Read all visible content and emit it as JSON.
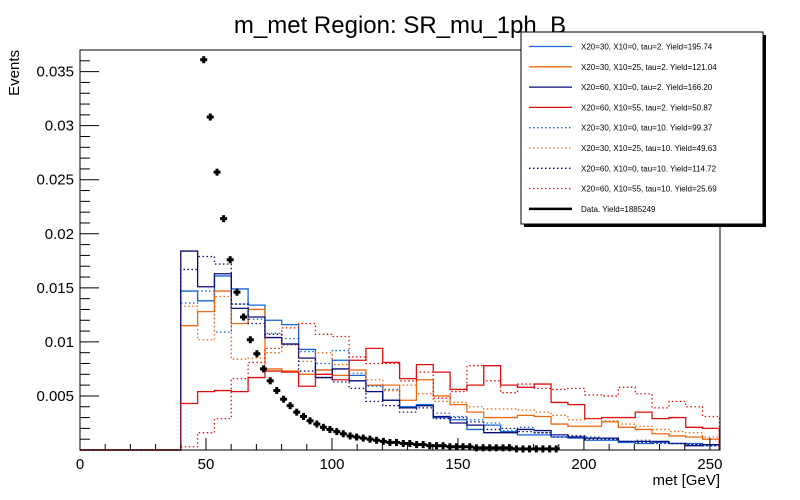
{
  "chart_data": {
    "type": "line",
    "subtype": "step-histogram-with-data-points",
    "title": "m_met Region: SR_mu_1ph_B",
    "xlabel": "met [GeV]",
    "ylabel": "Events",
    "xlim": [
      0,
      254
    ],
    "ylim": [
      0,
      0.037
    ],
    "grid": false,
    "legend_position": "top-right",
    "x_ticks": [
      0,
      50,
      100,
      150,
      200,
      250
    ],
    "x_tick_labels": [
      "0",
      "50",
      "100",
      "150",
      "200",
      "250"
    ],
    "y_ticks": [
      0.005,
      0.01,
      0.015,
      0.02,
      0.025,
      0.03,
      0.035
    ],
    "y_tick_labels": [
      "0.005",
      "0.01",
      "0.015",
      "0.02",
      "0.025",
      "0.03",
      "0.035"
    ],
    "bins": {
      "start": 40,
      "width": 6.68,
      "count": 32
    },
    "series": [
      {
        "name": "X20=30, X10=0, tau=2. Yield=195.74",
        "color": "#1565d8",
        "style": "solid",
        "values": [
          0.0147,
          0.0138,
          0.0161,
          0.0149,
          0.0134,
          0.012,
          0.0116,
          0.0093,
          0.0074,
          0.0083,
          0.0069,
          0.006,
          0.0046,
          0.004,
          0.0042,
          0.003,
          0.0028,
          0.0019,
          0.0023,
          0.0017,
          0.0014,
          0.0014,
          0.0012,
          0.0011,
          0.0009,
          0.0009,
          0.0007,
          0.0006,
          0.0007,
          0.0006,
          0.0006,
          0.0005
        ]
      },
      {
        "name": "X20=30, X10=25, tau=2. Yield=121.04",
        "color": "#ee6a10",
        "style": "solid",
        "values": [
          0.0115,
          0.0128,
          0.0147,
          0.0117,
          0.013,
          0.0075,
          0.0073,
          0.007,
          0.0074,
          0.0069,
          0.0074,
          0.006,
          0.006,
          0.0046,
          0.0065,
          0.005,
          0.0042,
          0.0035,
          0.003,
          0.003,
          0.0032,
          0.0031,
          0.0024,
          0.0022,
          0.0022,
          0.0026,
          0.0021,
          0.0019,
          0.0015,
          0.0013,
          0.0012,
          0.001
        ]
      },
      {
        "name": "X20=60, X10=0, tau=2. Yield=166.20",
        "color": "#0a0a78",
        "style": "solid",
        "values": [
          0.0184,
          0.0151,
          0.0163,
          0.0131,
          0.0123,
          0.0104,
          0.0098,
          0.0085,
          0.0067,
          0.0075,
          0.0064,
          0.0054,
          0.0046,
          0.0039,
          0.0041,
          0.0031,
          0.0025,
          0.0023,
          0.0016,
          0.0016,
          0.0019,
          0.0018,
          0.0014,
          0.0012,
          0.0011,
          0.0011,
          0.0008,
          0.0008,
          0.0008,
          0.0006,
          0.0004,
          0.0005
        ]
      },
      {
        "name": "X20=60, X10=55, tau=2. Yield=50.87",
        "color": "#dd1010",
        "style": "solid",
        "values": [
          0.0043,
          0.0054,
          0.0055,
          0.0054,
          0.0067,
          0.0073,
          0.0072,
          0.0059,
          0.007,
          0.0065,
          0.0083,
          0.0094,
          0.0081,
          0.0066,
          0.0079,
          0.0072,
          0.0056,
          0.006,
          0.0078,
          0.006,
          0.0058,
          0.0061,
          0.0044,
          0.0042,
          0.0029,
          0.003,
          0.003,
          0.0035,
          0.0029,
          0.003,
          0.0021,
          0.002
        ]
      },
      {
        "name": "X20=30, X10=0, tau=10. Yield=99.37",
        "color": "#1565d8",
        "style": "dotted",
        "values": [
          0.0136,
          0.0147,
          0.0109,
          0.0135,
          0.0121,
          0.0108,
          0.0103,
          0.0091,
          0.008,
          0.0092,
          0.0071,
          0.0059,
          0.0056,
          0.004,
          0.0042,
          0.0034,
          0.0031,
          0.0028,
          0.0025,
          0.0018,
          0.0021,
          0.0016,
          0.0014,
          0.0013,
          0.0012,
          0.001,
          0.0008,
          0.0009,
          0.0007,
          0.0006,
          0.0005,
          0.0004
        ]
      },
      {
        "name": "X20=30, X10=25, tau=10. Yield=49.63",
        "color": "#ee6a10",
        "style": "dotted",
        "values": [
          0.0133,
          0.0102,
          0.0142,
          0.0084,
          0.0085,
          0.009,
          0.0097,
          0.0082,
          0.009,
          0.0079,
          0.0074,
          0.0065,
          0.0055,
          0.006,
          0.0052,
          0.0045,
          0.0044,
          0.004,
          0.0038,
          0.0038,
          0.0037,
          0.0035,
          0.0032,
          0.0028,
          0.0029,
          0.0027,
          0.0024,
          0.0022,
          0.0019,
          0.0017,
          0.0016,
          0.0012
        ]
      },
      {
        "name": "X20=60, X10=0, tau=10. Yield=114.72",
        "color": "#0a0a78",
        "style": "dotted",
        "values": [
          0.0167,
          0.0179,
          0.0172,
          0.0135,
          0.0117,
          0.0107,
          0.0098,
          0.0073,
          0.0067,
          0.0063,
          0.0057,
          0.0045,
          0.0041,
          0.0035,
          0.0039,
          0.0029,
          0.003,
          0.0026,
          0.0019,
          0.002,
          0.0017,
          0.0016,
          0.0012,
          0.0013,
          0.001,
          0.001,
          0.0008,
          0.0007,
          0.0006,
          0.0006,
          0.0005,
          0.0004
        ]
      },
      {
        "name": "X20=60, X10=55, tau=10. Yield=25.69",
        "color": "#dd1010",
        "style": "dotted",
        "values": [
          0.0003,
          0.0016,
          0.0029,
          0.0066,
          0.0081,
          0.0094,
          0.0113,
          0.0117,
          0.0107,
          0.0105,
          0.0086,
          0.008,
          0.008,
          0.0064,
          0.0072,
          0.0048,
          0.0054,
          0.0078,
          0.0064,
          0.0053,
          0.0061,
          0.0057,
          0.0056,
          0.0057,
          0.0051,
          0.005,
          0.0058,
          0.0052,
          0.0039,
          0.0045,
          0.004,
          0.0031
        ]
      }
    ],
    "data_points": {
      "name": "Data. Yield=1885249",
      "color": "#000000",
      "x": [
        49.1,
        51.7,
        54.4,
        57.0,
        59.6,
        62.3,
        64.9,
        67.6,
        70.2,
        72.8,
        75.5,
        78.1,
        80.8,
        83.4,
        86.0,
        88.7,
        91.3,
        94.0,
        96.6,
        99.2,
        101.9,
        104.5,
        107.2,
        109.8,
        112.4,
        115.1,
        117.7,
        120.4,
        123.0,
        125.6,
        128.3,
        130.9,
        133.6,
        136.2,
        138.8,
        141.5,
        144.1,
        146.8,
        149.4,
        152.0,
        154.7,
        157.3,
        160.0,
        162.6,
        165.2,
        167.9,
        170.5,
        173.2,
        175.8,
        178.4,
        181.1,
        183.7,
        186.4,
        189.0
      ],
      "y": [
        0.0361,
        0.0308,
        0.0257,
        0.0214,
        0.0176,
        0.0146,
        0.0123,
        0.0102,
        0.0089,
        0.0075,
        0.0064,
        0.0055,
        0.0047,
        0.0041,
        0.0035,
        0.0031,
        0.0027,
        0.0024,
        0.0021,
        0.0019,
        0.0017,
        0.0015,
        0.0013,
        0.0012,
        0.0011,
        0.001,
        0.0009,
        0.0008,
        0.0007,
        0.0007,
        0.0006,
        0.0006,
        0.0005,
        0.0005,
        0.0004,
        0.0004,
        0.0004,
        0.0003,
        0.0003,
        0.0003,
        0.0003,
        0.0002,
        0.0002,
        0.0002,
        0.0002,
        0.0002,
        0.0002,
        0.0001,
        0.0001,
        0.0001,
        0.0001,
        0.0001,
        0.0001,
        0.0001
      ]
    }
  }
}
